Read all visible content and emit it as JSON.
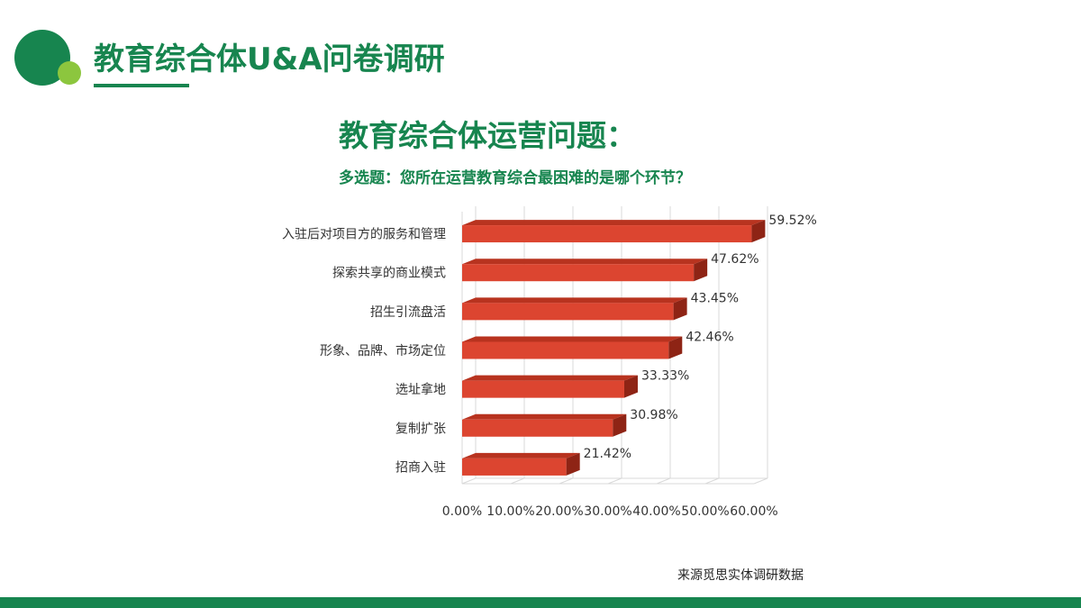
{
  "header": {
    "title": "教育综合体U&A问卷调研"
  },
  "colors": {
    "brand_green": "#17854f",
    "accent_light_green": "#8cc63e",
    "bar_front": "#dc4530",
    "bar_top": "#b8331f",
    "bar_side": "#8e2415",
    "grid": "#d9d9d9",
    "text_dark": "#333333"
  },
  "chart_data": {
    "type": "bar",
    "orientation": "horizontal",
    "title": "教育综合体运营问题：",
    "subtitle": "多选题：您所在运营教育综合最困难的是哪个环节？",
    "categories": [
      "入驻后对项目方的服务和管理",
      "探索共享的商业模式",
      "招生引流盘活",
      "形象、品牌、市场定位",
      "选址拿地",
      "复制扩张",
      "招商入驻"
    ],
    "values": [
      59.52,
      47.62,
      43.45,
      42.46,
      33.33,
      30.98,
      21.42
    ],
    "value_labels": [
      "59.52%",
      "47.62%",
      "43.45%",
      "42.46%",
      "33.33%",
      "30.98%",
      "21.42%"
    ],
    "x_ticks": [
      "0.00%",
      "10.00%",
      "20.00%",
      "30.00%",
      "40.00%",
      "50.00%",
      "60.00%"
    ],
    "xlim": [
      0,
      60
    ],
    "grid": true,
    "style": "3d"
  },
  "footer": {
    "source": "来源觅思实体调研数据"
  }
}
